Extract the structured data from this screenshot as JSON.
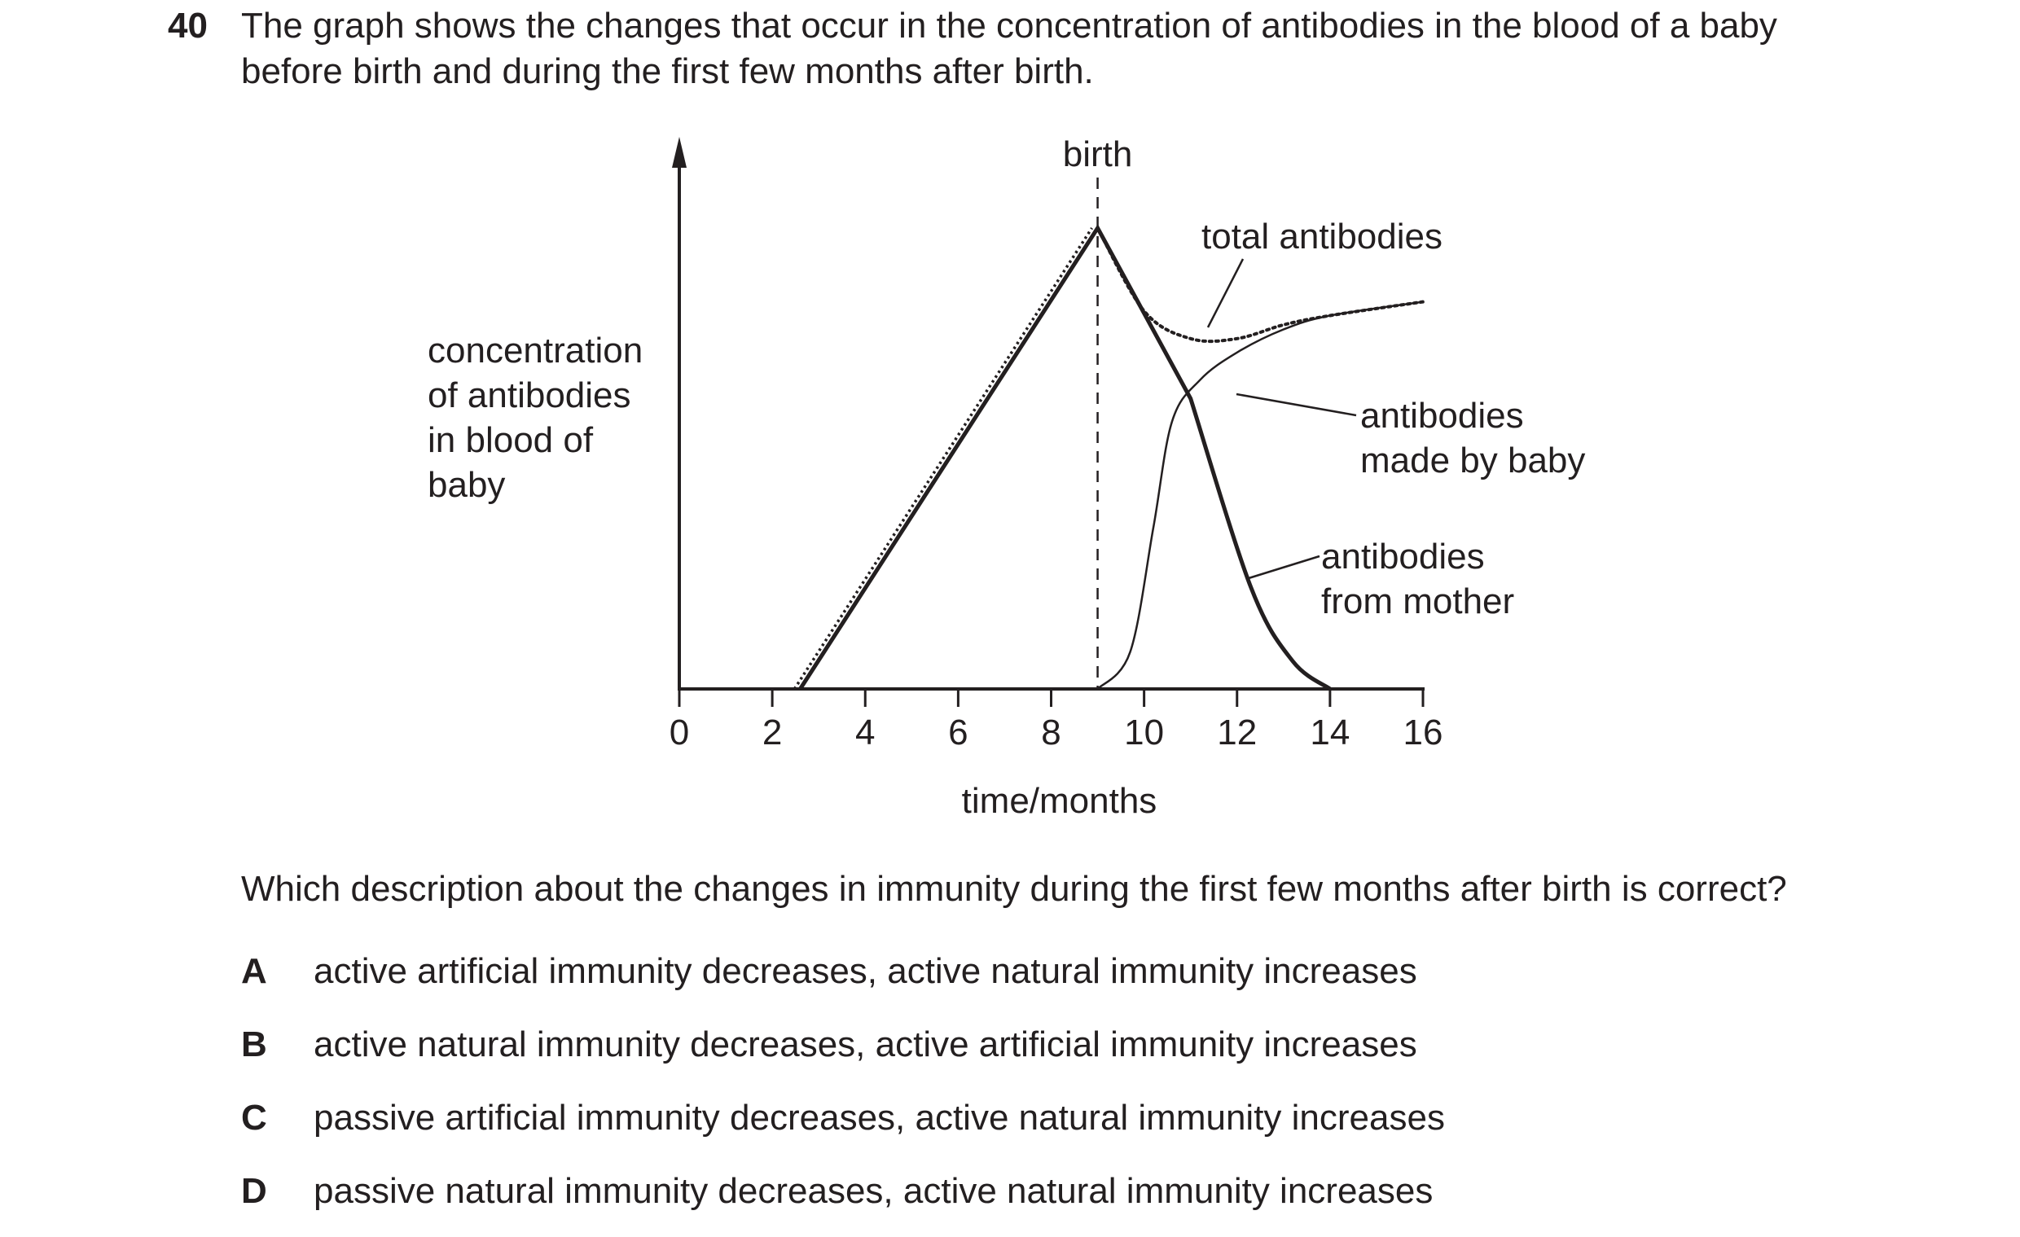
{
  "question": {
    "number": "40",
    "text_line1": "The graph shows the changes that occur in the concentration of antibodies in the blood of a baby",
    "text_line2": "before birth and during the first few months after birth."
  },
  "chart_data": {
    "type": "line",
    "xlabel": "time / months",
    "ylabel_lines": [
      "concentration",
      "of antibodies",
      "in blood of",
      "baby"
    ],
    "xlim": [
      0,
      16
    ],
    "ylim": [
      0,
      1
    ],
    "x_ticks": [
      0,
      2,
      4,
      6,
      8,
      10,
      12,
      14,
      16
    ],
    "y_ticks": [],
    "grid": false,
    "marker_line": {
      "x": 9,
      "label": "birth",
      "style": "dashed"
    },
    "series": [
      {
        "name": "antibodies from mother",
        "label_lines": [
          "antibodies",
          "from mother"
        ],
        "style": "solid-thick",
        "points": [
          [
            2.6,
            0
          ],
          [
            9,
            1
          ],
          [
            11,
            0.63
          ],
          [
            12.3,
            0.22
          ],
          [
            13.2,
            0.06
          ],
          [
            14,
            0
          ]
        ]
      },
      {
        "name": "antibodies made by baby",
        "label_lines": [
          "antibodies",
          "made by baby"
        ],
        "style": "solid-thin",
        "points": [
          [
            9,
            0
          ],
          [
            9.7,
            0.08
          ],
          [
            10.2,
            0.35
          ],
          [
            10.6,
            0.58
          ],
          [
            11.2,
            0.67
          ],
          [
            12,
            0.73
          ],
          [
            13,
            0.78
          ],
          [
            14,
            0.81
          ],
          [
            16,
            0.84
          ]
        ]
      },
      {
        "name": "total antibodies",
        "label_lines": [
          "total antibodies"
        ],
        "style": "dotted",
        "points": [
          [
            2.6,
            0
          ],
          [
            9,
            1
          ],
          [
            10,
            0.82
          ],
          [
            11,
            0.76
          ],
          [
            12,
            0.76
          ],
          [
            13,
            0.79
          ],
          [
            14,
            0.81
          ],
          [
            16,
            0.84
          ]
        ]
      }
    ]
  },
  "prompt": "Which description about the changes in immunity during the first few months after birth is correct?",
  "options": [
    {
      "letter": "A",
      "text": "active artificial immunity decreases, active natural immunity increases"
    },
    {
      "letter": "B",
      "text": "active natural immunity decreases, active artificial immunity increases"
    },
    {
      "letter": "C",
      "text": "passive artificial immunity decreases, active natural immunity increases"
    },
    {
      "letter": "D",
      "text": "passive natural immunity decreases, active natural immunity increases"
    }
  ]
}
